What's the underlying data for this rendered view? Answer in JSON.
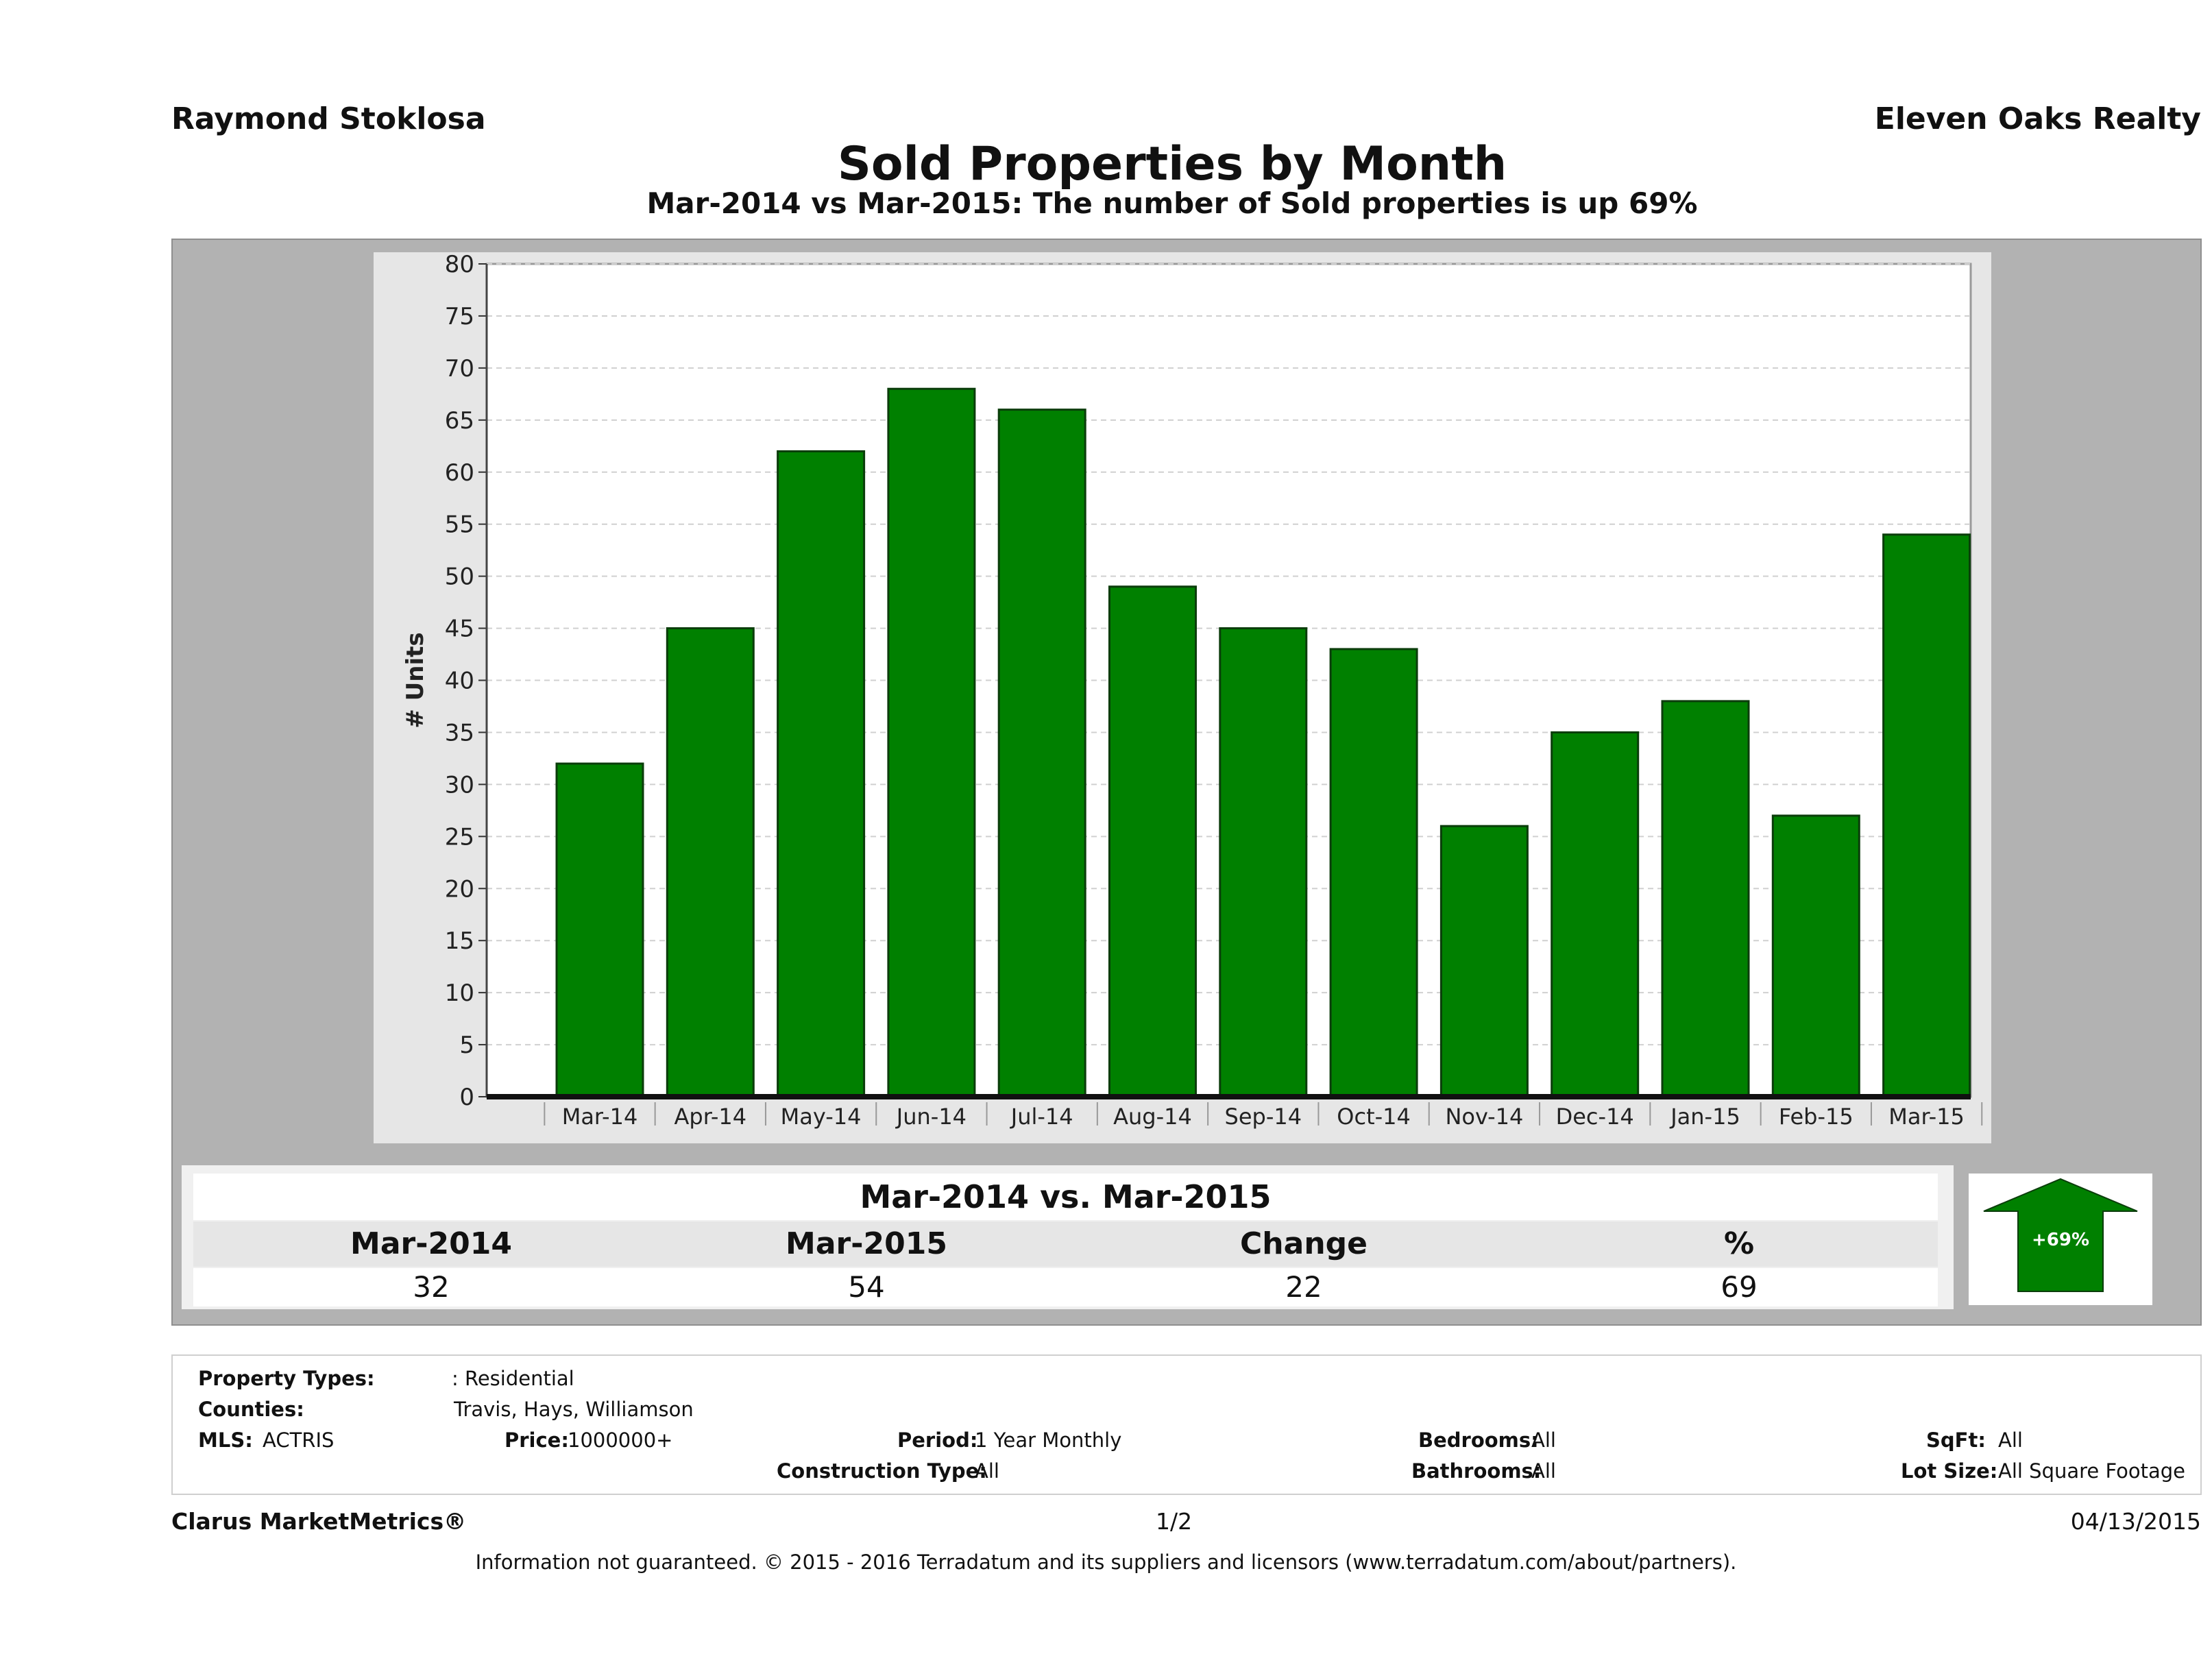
{
  "header": {
    "agent_name": "Raymond Stoklosa",
    "office_name": "Eleven Oaks Realty",
    "title": "Sold Properties by Month",
    "subtitle": "Mar-2014 vs Mar-2015: The number of Sold  properties is up 69%"
  },
  "colors": {
    "bar": "#008000",
    "bar_stroke": "#0b3d0b",
    "panel": "#b2b2b2",
    "plot_bg": "#ffffff",
    "arrow": "#008000"
  },
  "chart_data": {
    "type": "bar",
    "categories": [
      "Mar-14",
      "Apr-14",
      "May-14",
      "Jun-14",
      "Jul-14",
      "Aug-14",
      "Sep-14",
      "Oct-14",
      "Nov-14",
      "Dec-14",
      "Jan-15",
      "Feb-15",
      "Mar-15"
    ],
    "values": [
      32,
      45,
      62,
      68,
      66,
      49,
      45,
      43,
      26,
      35,
      38,
      27,
      54
    ],
    "ylabel": "# Units",
    "ylim": [
      0,
      80
    ],
    "yticks": [
      0,
      5,
      10,
      15,
      20,
      25,
      30,
      35,
      40,
      45,
      50,
      55,
      60,
      65,
      70,
      75,
      80
    ],
    "grid": true,
    "legend": "none"
  },
  "summary": {
    "heading": "Mar-2014 vs. Mar-2015",
    "labels": [
      "Mar-2014",
      "Mar-2015",
      "Change",
      "%"
    ],
    "values": [
      "32",
      "54",
      "22",
      "69"
    ],
    "arrow_label": "+69%",
    "arrow_icon": "up-arrow-icon"
  },
  "filters": {
    "property_types_label": "Property Types:",
    "property_types_value": ": Residential",
    "counties_label": "Counties:",
    "counties_value": "Travis, Hays, Williamson",
    "mls_label": "MLS:",
    "mls_value": "ACTRIS",
    "price_label": "Price:",
    "price_value": "1000000+",
    "period_label": "Period:",
    "period_value": "1 Year Monthly",
    "construction_label": "Construction Type:",
    "construction_value": "All",
    "bedrooms_label": "Bedrooms:",
    "bedrooms_value": "All",
    "bathrooms_label": "Bathrooms:",
    "bathrooms_value": "All",
    "sqft_label": "SqFt:",
    "sqft_value": "All",
    "lotsize_label": "Lot Size:",
    "lotsize_value": "All Square Footage"
  },
  "footer": {
    "brand": "Clarus MarketMetrics®",
    "page": "1/2",
    "date": "04/13/2015",
    "disclaimer": "Information not guaranteed. © 2015 - 2016 Terradatum and its suppliers and licensors (www.terradatum.com/about/partners)."
  }
}
